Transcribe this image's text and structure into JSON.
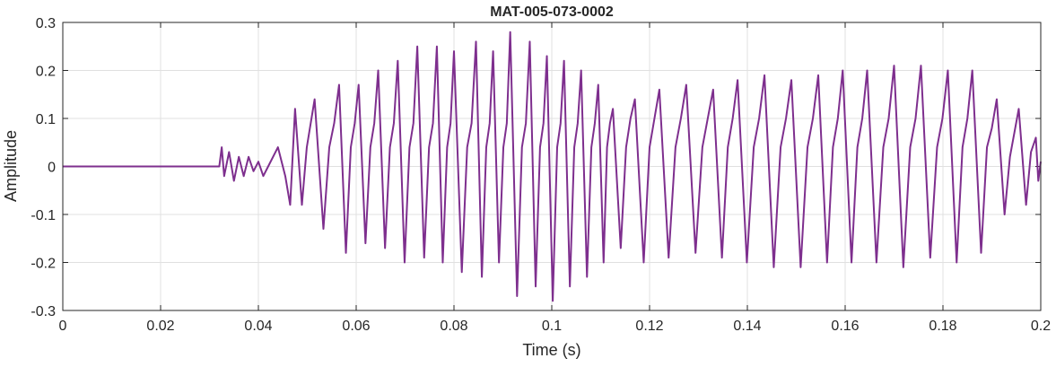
{
  "chart_data": {
    "type": "line",
    "title": "MAT-005-073-0002",
    "xlabel": "Time (s)",
    "ylabel": "Amplitude",
    "xlim": [
      0,
      0.2
    ],
    "ylim": [
      -0.3,
      0.3
    ],
    "xticks": [
      0,
      0.02,
      0.04,
      0.06,
      0.08,
      0.1,
      0.12,
      0.14,
      0.16,
      0.18,
      0.2
    ],
    "yticks": [
      -0.3,
      -0.2,
      -0.1,
      0,
      0.1,
      0.2,
      0.3
    ],
    "grid": true,
    "series": [
      {
        "color": "#7e2f8e",
        "x": [
          0,
          0.032,
          0.0325,
          0.033,
          0.034,
          0.035,
          0.036,
          0.037,
          0.038,
          0.039,
          0.04,
          0.041,
          0.042,
          0.044,
          0.0455,
          0.0465,
          0.0475,
          0.0489,
          0.0499,
          0.0507,
          0.0515,
          0.0533,
          0.0545,
          0.0555,
          0.0565,
          0.0579,
          0.0589,
          0.0597,
          0.0605,
          0.0619,
          0.0629,
          0.0637,
          0.0645,
          0.0659,
          0.0669,
          0.0677,
          0.0685,
          0.0699,
          0.0709,
          0.0717,
          0.0725,
          0.0739,
          0.0749,
          0.0757,
          0.0765,
          0.0777,
          0.0786,
          0.0793,
          0.08,
          0.0816,
          0.0827,
          0.0836,
          0.0845,
          0.0857,
          0.0866,
          0.0873,
          0.088,
          0.0892,
          0.0901,
          0.0908,
          0.0915,
          0.0929,
          0.0939,
          0.0947,
          0.0955,
          0.0967,
          0.0976,
          0.0983,
          0.099,
          0.1002,
          0.1011,
          0.1018,
          0.1025,
          0.1037,
          0.1046,
          0.1053,
          0.106,
          0.1072,
          0.1081,
          0.1088,
          0.1095,
          0.1106,
          0.1113,
          0.1119,
          0.1125,
          0.1141,
          0.1152,
          0.1161,
          0.117,
          0.1188,
          0.12,
          0.121,
          0.122,
          0.1239,
          0.1253,
          0.1264,
          0.1275,
          0.1294,
          0.1308,
          0.1319,
          0.133,
          0.1348,
          0.136,
          0.137,
          0.138,
          0.1399,
          0.1413,
          0.1424,
          0.1435,
          0.1454,
          0.1468,
          0.1479,
          0.149,
          0.1509,
          0.1523,
          0.1534,
          0.1545,
          0.1563,
          0.1575,
          0.1585,
          0.1595,
          0.1613,
          0.1625,
          0.1635,
          0.1645,
          0.1664,
          0.1678,
          0.1689,
          0.17,
          0.1719,
          0.1733,
          0.1744,
          0.1755,
          0.1774,
          0.1788,
          0.1799,
          0.181,
          0.1828,
          0.184,
          0.185,
          0.186,
          0.1878,
          0.189,
          0.19,
          0.191,
          0.1926,
          0.1937,
          0.1946,
          0.1955,
          0.197,
          0.198,
          0.199,
          0.1995,
          0.2
        ],
        "values": [
          0,
          0,
          0.04,
          -0.02,
          0.03,
          -0.03,
          0.02,
          -0.02,
          0.02,
          -0.01,
          0.01,
          -0.02,
          0,
          0.04,
          -0.02,
          -0.08,
          0.12,
          -0.08,
          0.04,
          0.09,
          0.14,
          -0.13,
          0.04,
          0.09,
          0.17,
          -0.18,
          0.04,
          0.09,
          0.17,
          -0.16,
          0.04,
          0.09,
          0.2,
          -0.17,
          0.04,
          0.09,
          0.22,
          -0.2,
          0.04,
          0.09,
          0.25,
          -0.19,
          0.04,
          0.09,
          0.25,
          -0.2,
          0.04,
          0.09,
          0.24,
          -0.22,
          0.04,
          0.09,
          0.26,
          -0.23,
          0.04,
          0.09,
          0.24,
          -0.2,
          0.04,
          0.09,
          0.28,
          -0.27,
          0.04,
          0.09,
          0.26,
          -0.25,
          0.04,
          0.09,
          0.23,
          -0.28,
          0.04,
          0.09,
          0.22,
          -0.25,
          0.04,
          0.09,
          0.2,
          -0.23,
          0.04,
          0.09,
          0.17,
          -0.2,
          0.04,
          0.09,
          0.12,
          -0.17,
          0.04,
          0.1,
          0.14,
          -0.2,
          0.04,
          0.1,
          0.16,
          -0.19,
          0.04,
          0.1,
          0.17,
          -0.18,
          0.04,
          0.1,
          0.16,
          -0.19,
          0.04,
          0.1,
          0.18,
          -0.2,
          0.04,
          0.1,
          0.19,
          -0.21,
          0.04,
          0.1,
          0.18,
          -0.21,
          0.04,
          0.1,
          0.19,
          -0.2,
          0.04,
          0.1,
          0.2,
          -0.2,
          0.04,
          0.1,
          0.2,
          -0.2,
          0.04,
          0.1,
          0.21,
          -0.21,
          0.04,
          0.1,
          0.21,
          -0.19,
          0.04,
          0.1,
          0.2,
          -0.2,
          0.04,
          0.1,
          0.2,
          -0.18,
          0.04,
          0.08,
          0.14,
          -0.1,
          0.02,
          0.07,
          0.12,
          -0.08,
          0.03,
          0.06,
          -0.03,
          0.01
        ]
      }
    ]
  }
}
